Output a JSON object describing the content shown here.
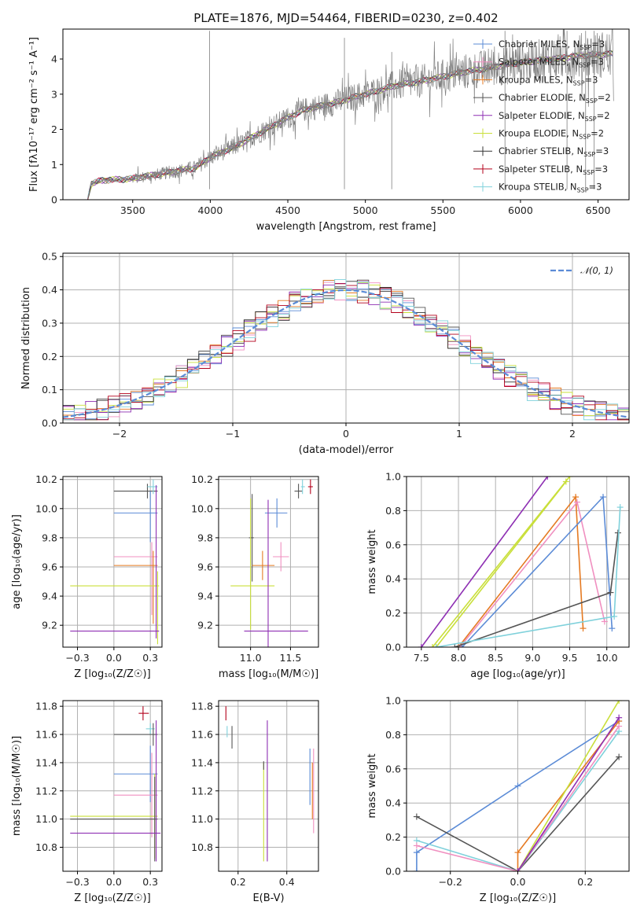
{
  "chart_data": [
    {
      "id": "spectrum",
      "type": "line",
      "title": "PLATE=1876, MJD=54464, FIBERID=0230, z=0.402",
      "xlabel": "wavelength [Angstrom, rest frame]",
      "ylabel": "Flux [fλ10⁻¹⁷ erg cm⁻² s⁻¹ A⁻¹]",
      "xlim": [
        3050,
        6700
      ],
      "ylim": [
        0,
        4.85
      ],
      "xticks": [
        3500,
        4000,
        4500,
        5000,
        5500,
        6000,
        6500
      ],
      "yticks": [
        0,
        1,
        2,
        3,
        4
      ],
      "data_color": "#808080",
      "legend": [
        {
          "label": "Chabrier MILES, N",
          "sub": "SSP",
          "suffix": "=3",
          "color": "#5b8bd6"
        },
        {
          "label": "Salpeter MILES, N",
          "sub": "SSP",
          "suffix": "=3",
          "color": "#f08fc0"
        },
        {
          "label": "Kroupa MILES, N",
          "sub": "SSP",
          "suffix": "=3",
          "color": "#e57a22"
        },
        {
          "label": "Chabrier ELODIE, N",
          "sub": "SSP",
          "suffix": "=2",
          "color": "#555555"
        },
        {
          "label": "Salpeter ELODIE, N",
          "sub": "SSP",
          "suffix": "=2",
          "color": "#8e2fb3"
        },
        {
          "label": "Kroupa ELODIE, N",
          "sub": "SSP",
          "suffix": "=2",
          "color": "#c9df3a"
        },
        {
          "label": "Chabrier STELIB, N",
          "sub": "SSP",
          "suffix": "=3",
          "color": "#333333"
        },
        {
          "label": "Salpeter STELIB, N",
          "sub": "SSP",
          "suffix": "=3",
          "color": "#b3001b"
        },
        {
          "label": "Kroupa STELIB, N",
          "sub": "SSP",
          "suffix": "=3",
          "color": "#7fd1db"
        }
      ],
      "continuum": [
        [
          3210,
          0.0
        ],
        [
          3230,
          0.45
        ],
        [
          3300,
          0.55
        ],
        [
          3500,
          0.6
        ],
        [
          3700,
          0.75
        ],
        [
          3900,
          0.9
        ],
        [
          4000,
          1.2
        ],
        [
          4200,
          1.6
        ],
        [
          4400,
          2.1
        ],
        [
          4600,
          2.55
        ],
        [
          4800,
          2.75
        ],
        [
          5000,
          3.0
        ],
        [
          5200,
          3.25
        ],
        [
          5400,
          3.4
        ],
        [
          5600,
          3.6
        ],
        [
          5800,
          3.75
        ],
        [
          6000,
          3.9
        ],
        [
          6200,
          4.0
        ],
        [
          6400,
          4.1
        ],
        [
          6600,
          4.15
        ]
      ]
    },
    {
      "id": "residuals",
      "type": "step",
      "xlabel": "(data-model)/error",
      "ylabel": "Normed distribution",
      "xlim": [
        -2.5,
        2.5
      ],
      "ylim": [
        0,
        0.51
      ],
      "xticks": [
        -2,
        -1,
        0,
        1,
        2
      ],
      "yticks": [
        0.0,
        0.1,
        0.2,
        0.3,
        0.4,
        0.5
      ],
      "normal_label": "𝒩(0, 1)",
      "normal_color": "#5b8bd6",
      "bin_width": 0.1
    },
    {
      "id": "age_vs_Z",
      "type": "errorbar",
      "xlabel": "Z [log₁₀(Z/Z☉)]",
      "ylabel": "age  [log₁₀(age/yr)]",
      "xlim": [
        -0.35,
        0.33
      ],
      "ylim": [
        9.05,
        10.22
      ],
      "xticks": [
        -0.25,
        0.0,
        0.25
      ],
      "yticks": [
        9.2,
        9.4,
        9.6,
        9.8,
        10.0,
        10.2
      ],
      "points": [
        {
          "x": 0.23,
          "xerr": [
            0.23,
            0.07
          ],
          "y": 10.12,
          "yerr": [
            0.05,
            0.05
          ],
          "color": "#555555"
        },
        {
          "x": 0.27,
          "xerr": [
            0.04,
            0.03
          ],
          "y": 10.15,
          "yerr": [
            0.05,
            0.05
          ],
          "color": "#7fd1db"
        },
        {
          "x": 0.25,
          "xerr": [
            0.25,
            0.05
          ],
          "y": 9.97,
          "yerr": [
            0.2,
            0.15
          ],
          "color": "#5b8bd6"
        },
        {
          "x": 0.26,
          "xerr": [
            0.26,
            0.04
          ],
          "y": 9.67,
          "yerr": [
            0.4,
            0.1
          ],
          "color": "#f08fc0"
        },
        {
          "x": 0.27,
          "xerr": [
            0.27,
            0.03
          ],
          "y": 9.61,
          "yerr": [
            0.4,
            0.1
          ],
          "color": "#e57a22"
        },
        {
          "x": 0.3,
          "xerr": [
            0.6,
            0.01
          ],
          "y": 9.47,
          "yerr": [
            0.4,
            0.1
          ],
          "color": "#c9df3a"
        },
        {
          "x": 0.29,
          "xerr": [
            0.59,
            0.02
          ],
          "y": 9.16,
          "yerr": [
            0.05,
            1.0
          ],
          "color": "#8e2fb3"
        }
      ]
    },
    {
      "id": "age_vs_mass",
      "type": "errorbar",
      "xlabel": "mass [log₁₀(M/M☉)]",
      "xlim": [
        10.6,
        11.85
      ],
      "ylim": [
        9.05,
        10.22
      ],
      "xticks": [
        11.0,
        11.5
      ],
      "yticks": [
        9.2,
        9.4,
        9.6,
        9.8,
        10.0,
        10.2
      ],
      "points": [
        {
          "x": 11.6,
          "xerr": [
            0.05,
            0.05
          ],
          "y": 10.12,
          "yerr": [
            0.05,
            0.05
          ],
          "color": "#555555"
        },
        {
          "x": 11.65,
          "xerr": [
            0.02,
            0.03
          ],
          "y": 10.15,
          "yerr": [
            0.05,
            0.05
          ],
          "color": "#7fd1db"
        },
        {
          "x": 11.75,
          "xerr": [
            0.03,
            0.03
          ],
          "y": 10.15,
          "yerr": [
            0.05,
            0.05
          ],
          "color": "#b3001b"
        },
        {
          "x": 11.33,
          "xerr": [
            0.15,
            0.13
          ],
          "y": 9.97,
          "yerr": [
            0.1,
            0.1
          ],
          "color": "#5b8bd6"
        },
        {
          "x": 11.02,
          "xerr": [
            0.04,
            0.02
          ],
          "y": 9.8,
          "yerr": [
            0.3,
            0.3
          ],
          "color": "#555555"
        },
        {
          "x": 11.38,
          "xerr": [
            0.1,
            0.1
          ],
          "y": 9.67,
          "yerr": [
            0.1,
            0.1
          ],
          "color": "#f08fc0"
        },
        {
          "x": 11.15,
          "xerr": [
            0.13,
            0.15
          ],
          "y": 9.61,
          "yerr": [
            0.1,
            0.1
          ],
          "color": "#e57a22"
        },
        {
          "x": 11.0,
          "xerr": [
            0.25,
            0.3
          ],
          "y": 9.47,
          "yerr": [
            0.3,
            0.6
          ],
          "color": "#c9df3a"
        },
        {
          "x": 11.22,
          "xerr": [
            0.3,
            0.5
          ],
          "y": 9.16,
          "yerr": [
            0.2,
            0.9
          ],
          "color": "#8e2fb3"
        }
      ]
    },
    {
      "id": "massweight_vs_age",
      "type": "line",
      "xlabel": "age  [log₁₀(age/yr)]",
      "ylabel": "mass weight",
      "xlim": [
        7.3,
        10.3
      ],
      "ylim": [
        0.0,
        1.0
      ],
      "xticks": [
        7.5,
        8.0,
        8.5,
        9.0,
        9.5,
        10.0
      ],
      "yticks": [
        0.0,
        0.2,
        0.4,
        0.6,
        0.8,
        1.0
      ],
      "series": [
        {
          "color": "#8e2fb3",
          "x": [
            7.5,
            9.2
          ],
          "y": [
            0.0,
            1.0
          ]
        },
        {
          "color": "#c9df3a",
          "x": [
            7.65,
            9.5
          ],
          "y": [
            0.0,
            1.0
          ]
        },
        {
          "color": "#c9df3a",
          "x": [
            7.7,
            9.45
          ],
          "y": [
            0.0,
            0.97
          ]
        },
        {
          "color": "#e57a22",
          "x": [
            8.0,
            9.58,
            9.68
          ],
          "y": [
            0.0,
            0.88,
            0.11
          ]
        },
        {
          "color": "#f08fc0",
          "x": [
            8.02,
            9.6,
            9.97
          ],
          "y": [
            0.0,
            0.85,
            0.15
          ]
        },
        {
          "color": "#5b8bd6",
          "x": [
            8.05,
            9.95,
            10.07
          ],
          "y": [
            0.0,
            0.88,
            0.11
          ]
        },
        {
          "color": "#555555",
          "x": [
            7.95,
            10.05,
            10.15
          ],
          "y": [
            0.0,
            0.32,
            0.67
          ]
        },
        {
          "color": "#7fd1db",
          "x": [
            7.7,
            10.1,
            10.18
          ],
          "y": [
            0.0,
            0.18,
            0.82
          ]
        }
      ]
    },
    {
      "id": "mass_vs_Z",
      "type": "errorbar",
      "xlabel": "Z [log₁₀(Z/Z☉)]",
      "ylabel": "mass [log₁₀(M/M☉)]",
      "xlim": [
        -0.35,
        0.33
      ],
      "ylim": [
        10.63,
        11.84
      ],
      "xticks": [
        -0.25,
        0.0,
        0.25
      ],
      "yticks": [
        10.8,
        11.0,
        11.2,
        11.4,
        11.6,
        11.8
      ],
      "points": [
        {
          "x": 0.2,
          "xerr": [
            0.03,
            0.04
          ],
          "y": 11.75,
          "yerr": [
            0.05,
            0.05
          ],
          "color": "#b3001b"
        },
        {
          "x": 0.25,
          "xerr": [
            0.03,
            0.03
          ],
          "y": 11.64,
          "yerr": [
            0.04,
            0.04
          ],
          "color": "#7fd1db"
        },
        {
          "x": 0.27,
          "xerr": [
            0.27,
            0.03
          ],
          "y": 11.6,
          "yerr": [
            0.08,
            0.08
          ],
          "color": "#555555"
        },
        {
          "x": 0.25,
          "xerr": [
            0.25,
            0.05
          ],
          "y": 11.32,
          "yerr": [
            0.2,
            0.2
          ],
          "color": "#5b8bd6"
        },
        {
          "x": 0.26,
          "xerr": [
            0.26,
            0.04
          ],
          "y": 11.17,
          "yerr": [
            0.3,
            0.3
          ],
          "color": "#f08fc0"
        },
        {
          "x": 0.28,
          "xerr": [
            0.58,
            0.02
          ],
          "y": 11.02,
          "yerr": [
            0.3,
            0.3
          ],
          "color": "#c9df3a"
        },
        {
          "x": 0.28,
          "xerr": [
            0.58,
            0.02
          ],
          "y": 11.0,
          "yerr": [
            0.3,
            0.3
          ],
          "color": "#555555"
        },
        {
          "x": 0.29,
          "xerr": [
            0.59,
            0.03
          ],
          "y": 10.9,
          "yerr": [
            0.2,
            0.8
          ],
          "color": "#8e2fb3"
        }
      ]
    },
    {
      "id": "mass_vs_ebv",
      "type": "errorbar",
      "xlabel": "E(B-V)",
      "xlim": [
        0.12,
        0.53
      ],
      "ylim": [
        10.63,
        11.84
      ],
      "xticks": [
        0.2,
        0.4
      ],
      "yticks": [
        10.8,
        11.0,
        11.2,
        11.4,
        11.6,
        11.8
      ],
      "points": [
        {
          "x": 0.15,
          "y": 11.75,
          "yerr": [
            0.05,
            0.05
          ],
          "color": "#b3001b"
        },
        {
          "x": 0.155,
          "y": 11.62,
          "yerr": [
            0.04,
            0.04
          ],
          "color": "#7fd1db"
        },
        {
          "x": 0.175,
          "y": 11.58,
          "yerr": [
            0.08,
            0.08
          ],
          "color": "#555555"
        },
        {
          "x": 0.305,
          "y": 11.05,
          "yerr": [
            0.35,
            0.35
          ],
          "color": "#c9df3a"
        },
        {
          "x": 0.305,
          "y": 11.38,
          "yerr": [
            0.03,
            0.03
          ],
          "color": "#555555"
        },
        {
          "x": 0.32,
          "y": 11.2,
          "yerr": [
            0.5,
            0.5
          ],
          "color": "#8e2fb3"
        },
        {
          "x": 0.495,
          "y": 11.3,
          "yerr": [
            0.2,
            0.2
          ],
          "color": "#5b8bd6"
        },
        {
          "x": 0.505,
          "y": 11.2,
          "yerr": [
            0.2,
            0.2
          ],
          "color": "#e57a22"
        },
        {
          "x": 0.51,
          "y": 11.2,
          "yerr": [
            0.3,
            0.3
          ],
          "color": "#f08fc0"
        }
      ]
    },
    {
      "id": "massweight_vs_Z",
      "type": "line",
      "xlabel": "Z [log₁₀(Z/Z☉)]",
      "ylabel": "mass weight",
      "xlim": [
        -0.33,
        0.33
      ],
      "ylim": [
        0.0,
        1.0
      ],
      "xticks": [
        -0.2,
        0.0,
        0.2
      ],
      "yticks": [
        0.0,
        0.2,
        0.4,
        0.6,
        0.8,
        1.0
      ],
      "series": [
        {
          "color": "#5b8bd6",
          "x": [
            -0.3,
            -0.3,
            0.0,
            0.3
          ],
          "y": [
            0.0,
            0.11,
            0.5,
            0.88
          ]
        },
        {
          "color": "#555555",
          "x": [
            -0.3,
            0.0,
            0.3
          ],
          "y": [
            0.32,
            0.0,
            0.67
          ]
        },
        {
          "color": "#7fd1db",
          "x": [
            -0.3,
            0.0,
            0.3
          ],
          "y": [
            0.18,
            0.0,
            0.82
          ]
        },
        {
          "color": "#f08fc0",
          "x": [
            -0.3,
            0.0,
            0.3
          ],
          "y": [
            0.15,
            0.0,
            0.85
          ]
        },
        {
          "color": "#e57a22",
          "x": [
            0.0,
            0.0,
            0.3
          ],
          "y": [
            0.0,
            0.11,
            0.88
          ]
        },
        {
          "color": "#c9df3a",
          "x": [
            0.0,
            0.3
          ],
          "y": [
            0.0,
            1.0
          ]
        },
        {
          "color": "#8e2fb3",
          "x": [
            0.0,
            0.3
          ],
          "y": [
            0.0,
            0.9
          ]
        }
      ]
    }
  ]
}
